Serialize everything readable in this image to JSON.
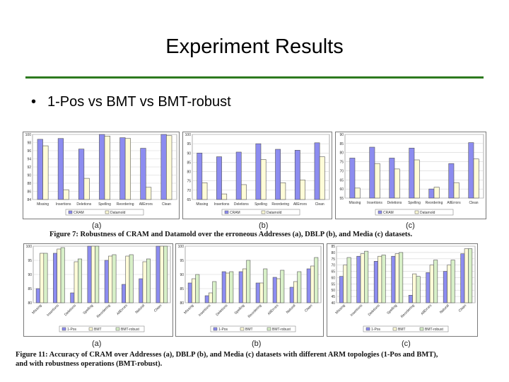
{
  "slide": {
    "title": "Experiment Results",
    "bullet": "1-Pos vs BMT vs BMT-robust",
    "caption_fig7": "Figure 7:  Robustness of CRAM and Datamold over the erroneous Addresses (a), DBLP (b), and Media (c) datasets.",
    "caption_fig11_line1": "Figure 11:  Accuracy of CRAM over Addresses (a), DBLP (b), and Media (c) datasets with different ARM topologies (1-Pos and BMT),",
    "caption_fig11_line2": "and with robustness operations (BMT-robust).",
    "sub_a": "(a)",
    "sub_b": "(b)",
    "sub_c": "(c)",
    "sub_a2": "(a)",
    "sub_b2": "(b)",
    "sub_c2": "(c)"
  },
  "colors": {
    "series1": "#8c8cf0",
    "series2": "#fffcd8",
    "series3": "#d8f0c8",
    "rule": "#2d7a1e"
  },
  "chart_data": [
    {
      "type": "bar",
      "categories": [
        "Missing",
        "Insertions",
        "Deletions",
        "Spelling",
        "Reordering",
        "AllErrors",
        "Clean"
      ],
      "ylim": [
        84,
        100
      ],
      "yticks": [
        84,
        86,
        88,
        90,
        92,
        94,
        96,
        98,
        100
      ],
      "series": [
        {
          "name": "CRAM",
          "values": [
            98.8,
            99.0,
            96.4,
            100,
            99.2,
            96.6,
            100
          ]
        },
        {
          "name": "Datamold",
          "values": [
            97.2,
            86.4,
            89.2,
            99.6,
            99.0,
            87.0,
            99.7
          ]
        }
      ]
    },
    {
      "type": "bar",
      "categories": [
        "Missing",
        "Insertions",
        "Deletions",
        "Spelling",
        "Reordering",
        "AllErrors",
        "Clean"
      ],
      "ylim": [
        65,
        100
      ],
      "yticks": [
        65,
        70,
        75,
        80,
        85,
        90,
        95,
        100
      ],
      "series": [
        {
          "name": "CRAM",
          "values": [
            90,
            88,
            90.5,
            95,
            92,
            91.5,
            95.5
          ]
        },
        {
          "name": "Datamold",
          "values": [
            74,
            68,
            73,
            86.5,
            74,
            75.5,
            88
          ]
        }
      ]
    },
    {
      "type": "bar",
      "categories": [
        "Missing",
        "Insertions",
        "Deletions",
        "Spelling",
        "Reordering",
        "AllErrors",
        "Clean"
      ],
      "ylim": [
        55,
        90
      ],
      "yticks": [
        55,
        60,
        65,
        70,
        75,
        80,
        85,
        90
      ],
      "series": [
        {
          "name": "CRAM",
          "values": [
            77,
            83,
            77,
            82.5,
            60,
            74,
            85.5
          ]
        },
        {
          "name": "Datamold",
          "values": [
            60.5,
            74,
            71,
            76,
            61,
            63.5,
            76.5
          ]
        }
      ]
    },
    {
      "type": "bar",
      "categories": [
        "Missing",
        "Insertions",
        "Deletions",
        "Spelling",
        "Reordering",
        "AllErrors",
        "Natural",
        "Clean"
      ],
      "ylim": [
        80,
        100
      ],
      "yticks": [
        80,
        85,
        90,
        95,
        100
      ],
      "series": [
        {
          "name": "1-Pos",
          "values": [
            85,
            97.5,
            83.5,
            100,
            95,
            86.5,
            88.5,
            100
          ]
        },
        {
          "name": "BMT",
          "values": [
            97.5,
            99,
            94.5,
            100,
            96.5,
            96.5,
            94.5,
            100
          ]
        },
        {
          "name": "BMT-robust",
          "values": [
            97.5,
            99.5,
            95.5,
            100,
            97,
            97,
            95.5,
            100
          ]
        }
      ]
    },
    {
      "type": "bar",
      "categories": [
        "Missing",
        "Insertions",
        "Deletions",
        "Spelling",
        "Reordering",
        "AllErrors",
        "Natural",
        "Clean"
      ],
      "ylim": [
        80,
        100
      ],
      "yticks": [
        80,
        85,
        90,
        95,
        100
      ],
      "series": [
        {
          "name": "1-Pos",
          "values": [
            87,
            82.5,
            91,
            91,
            87,
            89,
            85.5,
            92
          ]
        },
        {
          "name": "BMT",
          "values": [
            88.5,
            83.5,
            90.5,
            92,
            87,
            88.5,
            87.5,
            93
          ]
        },
        {
          "name": "BMT-robust",
          "values": [
            90,
            87.5,
            91,
            95,
            92,
            91.5,
            91,
            96
          ]
        }
      ]
    },
    {
      "type": "bar",
      "categories": [
        "Missing",
        "Insertions",
        "Deletions",
        "Spelling",
        "Reordering",
        "AllErrors",
        "Natural",
        "Clean"
      ],
      "ylim": [
        40,
        85
      ],
      "yticks": [
        40,
        45,
        50,
        55,
        60,
        65,
        70,
        75,
        80,
        85
      ],
      "series": [
        {
          "name": "1-Pos",
          "values": [
            61,
            77,
            73,
            77,
            46,
            64,
            65,
            79
          ]
        },
        {
          "name": "BMT",
          "values": [
            70,
            79,
            77,
            79,
            63,
            70,
            70,
            83
          ]
        },
        {
          "name": "BMT-robust",
          "values": [
            76,
            81,
            78,
            80,
            61,
            74,
            74,
            83
          ]
        }
      ]
    }
  ]
}
